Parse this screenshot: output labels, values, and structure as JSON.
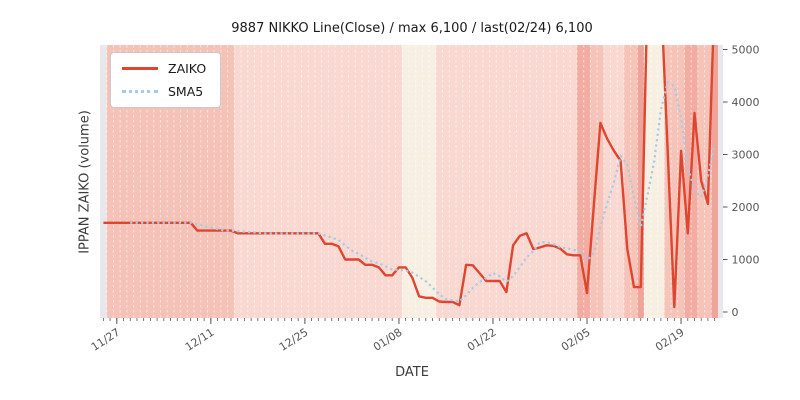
{
  "title": "9887 NIKKO Line(Close) / max 6,100 / last(02/24) 6,100",
  "axes": {
    "x_label": "DATE",
    "y_label": "IPPAN ZAIKO (volume)",
    "y_ticks": [
      "0",
      "1000",
      "2000",
      "3000",
      "4000",
      "5000"
    ],
    "x_tick_labels": [
      "11/27",
      "12/11",
      "12/25",
      "01/08",
      "01/22",
      "02/05",
      "02/19"
    ]
  },
  "legend": {
    "items": [
      {
        "label": "ZAIKO",
        "color": "#df4630",
        "style": "solid"
      },
      {
        "label": "SMA5",
        "color": "#a6cbe5",
        "style": "dotted"
      }
    ]
  },
  "colors": {
    "zaiko_line": "#df4630",
    "sma5_line": "#a6cbe5",
    "tick_text": "#555555",
    "tick_mark": "#555555",
    "band_separator": "#ffffff",
    "outside_band": "#e8e8ec"
  },
  "chart_data": {
    "type": "line",
    "title": "9887 NIKKO Line(Close) / max 6,100 / last(02/24) 6,100",
    "xlabel": "DATE",
    "ylabel": "IPPAN ZAIKO (volume)",
    "ylim": [
      0,
      5000
    ],
    "clip_note": "ZAIKO values above 5000 (the 6,100 spikes) are clipped at the axis top",
    "legend_position": "upper-left",
    "grid": "white dashed vertical day separators over colored background bands",
    "x": [
      "11/25",
      "11/26",
      "11/27",
      "11/28",
      "11/29",
      "11/30",
      "12/01",
      "12/02",
      "12/03",
      "12/04",
      "12/05",
      "12/06",
      "12/07",
      "12/08",
      "12/09",
      "12/10",
      "12/11",
      "12/12",
      "12/13",
      "12/14",
      "12/15",
      "12/16",
      "12/17",
      "12/18",
      "12/19",
      "12/20",
      "12/21",
      "12/22",
      "12/23",
      "12/24",
      "12/25",
      "12/26",
      "12/27",
      "12/28",
      "12/29",
      "12/30",
      "12/31",
      "01/01",
      "01/02",
      "01/03",
      "01/04",
      "01/05",
      "01/06",
      "01/07",
      "01/08",
      "01/09",
      "01/10",
      "01/11",
      "01/12",
      "01/13",
      "01/14",
      "01/15",
      "01/16",
      "01/17",
      "01/18",
      "01/19",
      "01/20",
      "01/21",
      "01/22",
      "01/23",
      "01/24",
      "01/25",
      "01/26",
      "01/27",
      "01/28",
      "01/29",
      "01/30",
      "01/31",
      "02/01",
      "02/02",
      "02/03",
      "02/04",
      "02/05",
      "02/06",
      "02/07",
      "02/08",
      "02/09",
      "02/10",
      "02/11",
      "02/12",
      "02/13",
      "02/14",
      "02/15",
      "02/16",
      "02/17",
      "02/18",
      "02/19",
      "02/20",
      "02/21",
      "02/22",
      "02/23",
      "02/24"
    ],
    "x_major_tick_indices": [
      2,
      16,
      30,
      44,
      58,
      72,
      86
    ],
    "series": [
      {
        "name": "ZAIKO",
        "color": "#df4630",
        "style": "solid",
        "values": [
          1700,
          1700,
          1700,
          1700,
          1700,
          1700,
          1700,
          1700,
          1700,
          1700,
          1700,
          1700,
          1700,
          1700,
          1550,
          1550,
          1550,
          1550,
          1550,
          1550,
          1500,
          1500,
          1500,
          1500,
          1500,
          1500,
          1500,
          1500,
          1500,
          1500,
          1500,
          1500,
          1500,
          1300,
          1300,
          1250,
          1000,
          1000,
          1000,
          900,
          900,
          850,
          700,
          700,
          850,
          850,
          650,
          300,
          270,
          270,
          200,
          190,
          190,
          130,
          900,
          890,
          740,
          590,
          590,
          590,
          380,
          1270,
          1450,
          1500,
          1200,
          1230,
          1270,
          1260,
          1210,
          1100,
          1080,
          1080,
          360,
          2000,
          3600,
          3300,
          3070,
          2880,
          1200,
          475,
          475,
          6100,
          6100,
          6100,
          3100,
          95,
          3070,
          1500,
          3790,
          2500,
          2060,
          6100
        ]
      },
      {
        "name": "SMA5",
        "color": "#a6cbe5",
        "style": "dotted",
        "derived_from": "5-day moving average of ZAIKO (starts at 5th data point)"
      }
    ],
    "background_bands": [
      {
        "from_day": 0,
        "to_day": 1,
        "color": "#e8e8ec"
      },
      {
        "from_day": 1,
        "to_day": 20,
        "color": "#f4c2b7"
      },
      {
        "from_day": 20,
        "to_day": 45,
        "color": "#f8d8d0"
      },
      {
        "from_day": 45,
        "to_day": 50,
        "color": "#f6efe2"
      },
      {
        "from_day": 50,
        "to_day": 71,
        "color": "#f8d8d0"
      },
      {
        "from_day": 71,
        "to_day": 73,
        "color": "#f2aca2"
      },
      {
        "from_day": 73,
        "to_day": 75,
        "color": "#f5c3b8"
      },
      {
        "from_day": 75,
        "to_day": 78,
        "color": "#f8d8d0"
      },
      {
        "from_day": 78,
        "to_day": 80,
        "color": "#f5c3b8"
      },
      {
        "from_day": 80,
        "to_day": 81,
        "color": "#efa49a"
      },
      {
        "from_day": 81,
        "to_day": 84,
        "color": "#f6efe2"
      },
      {
        "from_day": 84,
        "to_day": 87,
        "color": "#f5c3b8"
      },
      {
        "from_day": 87,
        "to_day": 89,
        "color": "#f2aca2"
      },
      {
        "from_day": 89,
        "to_day": 91,
        "color": "#f5c3b8"
      },
      {
        "from_day": 91,
        "to_day": 92,
        "color": "#efa49a"
      }
    ]
  }
}
